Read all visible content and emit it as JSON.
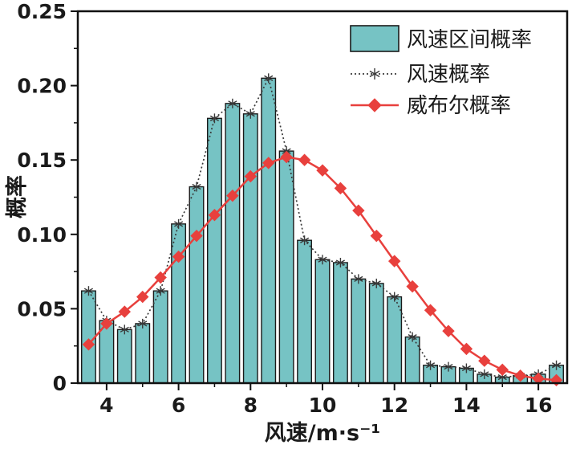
{
  "chart_data": {
    "type": "bar",
    "title": "",
    "xlabel": "风速/m·s⁻¹",
    "ylabel": "概率",
    "xlim": [
      3.2,
      16.8
    ],
    "ylim": [
      0,
      0.25
    ],
    "xticks": [
      4,
      6,
      8,
      10,
      12,
      14,
      16
    ],
    "xticks_minor": [
      5,
      7,
      9,
      11,
      13,
      15
    ],
    "yticks": [
      0,
      0.05,
      0.1,
      0.15,
      0.2,
      0.25
    ],
    "grid": false,
    "legend_position": "top-right-inside",
    "x": [
      3.5,
      4.0,
      4.5,
      5.0,
      5.5,
      6.0,
      6.5,
      7.0,
      7.5,
      8.0,
      8.5,
      9.0,
      9.5,
      10.0,
      10.5,
      11.0,
      11.5,
      12.0,
      12.5,
      13.0,
      13.5,
      14.0,
      14.5,
      15.0,
      15.5,
      16.0,
      16.5
    ],
    "bar_series": {
      "name": "风速区间概率",
      "values": [
        0.062,
        0.042,
        0.036,
        0.04,
        0.062,
        0.107,
        0.132,
        0.178,
        0.188,
        0.181,
        0.205,
        0.156,
        0.096,
        0.083,
        0.081,
        0.07,
        0.067,
        0.058,
        0.031,
        0.012,
        0.011,
        0.01,
        0.006,
        0.004,
        0.005,
        0.006,
        0.012
      ]
    },
    "line_series": [
      {
        "name": "风速概率",
        "style": "dotted-asterisk",
        "color": "#3a3a3a",
        "values": [
          0.062,
          0.042,
          0.036,
          0.04,
          0.062,
          0.107,
          0.132,
          0.178,
          0.188,
          0.181,
          0.205,
          0.156,
          0.096,
          0.083,
          0.081,
          0.07,
          0.067,
          0.058,
          0.031,
          0.012,
          0.011,
          0.01,
          0.006,
          0.004,
          0.005,
          0.006,
          0.012
        ]
      },
      {
        "name": "威布尔概率",
        "style": "solid-diamond",
        "color": "#e8403d",
        "values": [
          0.026,
          0.04,
          0.048,
          0.058,
          0.071,
          0.085,
          0.099,
          0.113,
          0.126,
          0.139,
          0.148,
          0.152,
          0.15,
          0.143,
          0.131,
          0.116,
          0.099,
          0.082,
          0.065,
          0.049,
          0.035,
          0.023,
          0.015,
          0.009,
          0.005,
          0.003,
          0.002
        ]
      }
    ],
    "bar_color": "#76c3c4",
    "bar_edge_color": "#1a1a1a",
    "axis_color": "#111111"
  }
}
